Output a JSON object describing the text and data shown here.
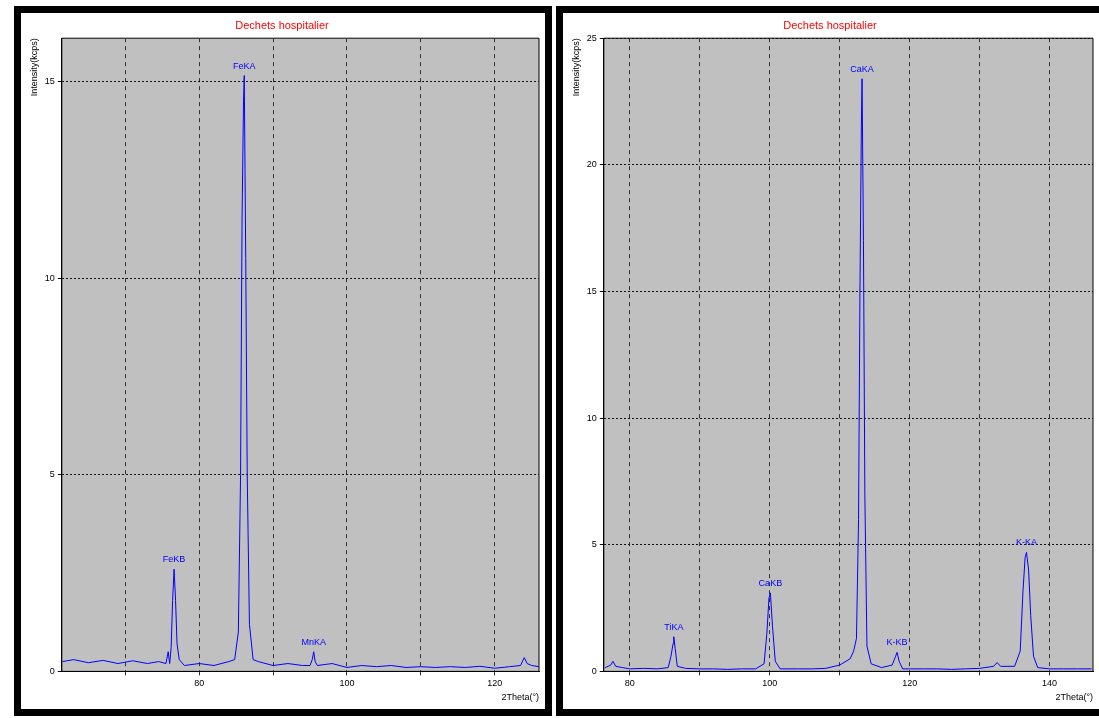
{
  "chart_data": [
    {
      "type": "line",
      "title": "Dechets hospitalier",
      "xlabel": "2Theta(°)",
      "ylabel": "Intensity(kcps)",
      "xlim": [
        61.4,
        126
      ],
      "ylim": [
        0,
        16.1
      ],
      "xticks": [
        {
          "value": 70,
          "label": null
        },
        80,
        {
          "value": 90,
          "label": null
        },
        100,
        {
          "value": 110,
          "label": null
        },
        120
      ],
      "yticks": [
        0,
        5,
        10,
        15
      ],
      "grid": true,
      "legend": false,
      "marker": "none",
      "line_style": "solid",
      "annotations": [
        {
          "text": "FeKB",
          "x": 76.6,
          "y": 2.6
        },
        {
          "text": "FeKA",
          "x": 86.1,
          "y": 15.15
        },
        {
          "text": "MnKA",
          "x": 95.5,
          "y": 0.5
        }
      ],
      "series": [
        {
          "color": "#0000ff",
          "x": [
            61.5,
            63,
            65,
            67,
            69,
            71,
            73,
            74.5,
            75.5,
            75.8,
            76,
            76.2,
            76.4,
            76.6,
            76.8,
            77,
            77.3,
            78,
            80,
            82,
            84,
            84.8,
            85.3,
            85.6,
            85.8,
            86.0,
            86.1,
            86.3,
            86.5,
            86.8,
            87.3,
            88,
            90,
            92,
            94,
            95,
            95.3,
            95.5,
            95.7,
            96,
            98,
            100,
            102,
            104,
            106,
            108,
            110,
            112,
            114,
            116,
            118,
            120,
            122,
            123.5,
            124,
            124.4,
            125,
            126
          ],
          "values": [
            0.25,
            0.3,
            0.22,
            0.28,
            0.2,
            0.27,
            0.2,
            0.25,
            0.2,
            0.5,
            0.2,
            0.6,
            1.8,
            2.6,
            1.8,
            0.7,
            0.3,
            0.15,
            0.2,
            0.15,
            0.25,
            0.3,
            1.0,
            5,
            11.5,
            14.5,
            15.15,
            10.5,
            5,
            1.2,
            0.3,
            0.25,
            0.15,
            0.2,
            0.15,
            0.15,
            0.3,
            0.5,
            0.25,
            0.15,
            0.2,
            0.1,
            0.15,
            0.12,
            0.15,
            0.1,
            0.12,
            0.1,
            0.12,
            0.1,
            0.13,
            0.08,
            0.12,
            0.15,
            0.35,
            0.2,
            0.15,
            0.12
          ]
        }
      ]
    },
    {
      "type": "line",
      "title": "Dechets hospitalier",
      "xlabel": "2Theta(°)",
      "ylabel": "Intensity(kcps)",
      "xlim": [
        76.3,
        146.2
      ],
      "ylim": [
        0,
        25
      ],
      "xticks": [
        80,
        {
          "value": 90,
          "label": null
        },
        100,
        {
          "value": 110,
          "label": null
        },
        120,
        {
          "value": 130,
          "label": null
        },
        140
      ],
      "yticks": [
        0,
        5,
        10,
        15,
        20,
        25
      ],
      "grid": true,
      "legend": false,
      "marker": "none",
      "line_style": "solid",
      "annotations": [
        {
          "text": "TiKA",
          "x": 86.3,
          "y": 1.37
        },
        {
          "text": "CaKB",
          "x": 100.1,
          "y": 3.1
        },
        {
          "text": "CaKA",
          "x": 113.2,
          "y": 23.4
        },
        {
          "text": "K-KB",
          "x": 118.2,
          "y": 0.75
        },
        {
          "text": "K-KA",
          "x": 136.7,
          "y": 4.7
        }
      ],
      "series": [
        {
          "color": "#0000ff",
          "x": [
            76.5,
            77.3,
            77.6,
            78,
            79,
            80,
            82,
            84,
            85.5,
            85.9,
            86.2,
            86.3,
            86.5,
            86.8,
            88,
            90,
            92,
            94,
            96,
            98,
            99.2,
            99.6,
            99.9,
            100.1,
            100.4,
            100.8,
            101.5,
            104,
            106,
            108,
            110,
            111.5,
            112,
            112.4,
            112.7,
            112.9,
            113.1,
            113.2,
            113.4,
            113.6,
            113.9,
            114.5,
            116,
            117.5,
            118,
            118.2,
            118.5,
            119,
            120,
            122,
            124,
            126,
            128,
            130,
            132,
            132.5,
            133,
            135,
            135.8,
            136.2,
            136.5,
            136.7,
            137,
            137.3,
            137.7,
            138.3,
            140,
            142,
            144,
            146
          ],
          "values": [
            0.15,
            0.25,
            0.4,
            0.2,
            0.15,
            0.1,
            0.12,
            0.1,
            0.15,
            0.6,
            1.1,
            1.37,
            0.9,
            0.2,
            0.12,
            0.1,
            0.1,
            0.08,
            0.1,
            0.1,
            0.3,
            1.5,
            2.9,
            3.1,
            1.8,
            0.4,
            0.1,
            0.1,
            0.1,
            0.12,
            0.25,
            0.5,
            0.8,
            1.3,
            6,
            15,
            21.5,
            23.4,
            17,
            7,
            1.0,
            0.3,
            0.15,
            0.25,
            0.6,
            0.75,
            0.4,
            0.1,
            0.1,
            0.1,
            0.1,
            0.08,
            0.1,
            0.12,
            0.2,
            0.35,
            0.2,
            0.2,
            0.8,
            3.2,
            4.5,
            4.7,
            4.0,
            2.2,
            0.6,
            0.15,
            0.1,
            0.1,
            0.1,
            0.1
          ]
        }
      ]
    }
  ]
}
